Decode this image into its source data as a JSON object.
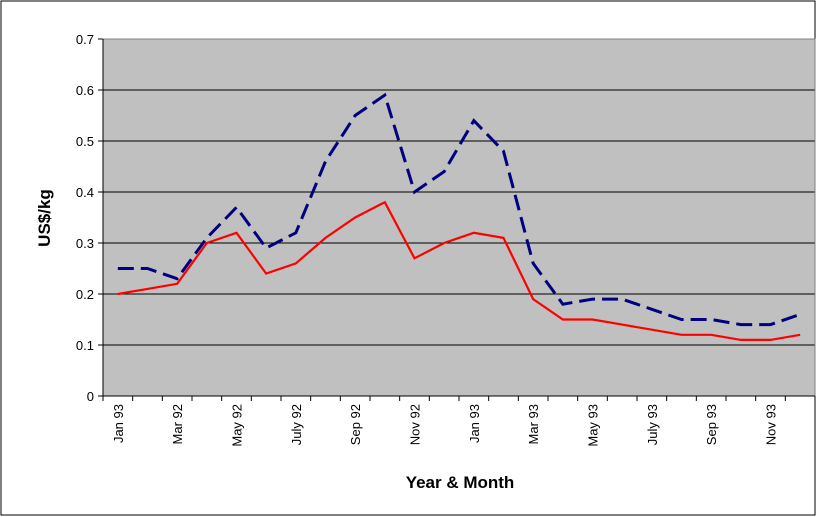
{
  "chart_data": {
    "type": "line",
    "x_label": "Year & Month",
    "y_label": "US$/kg",
    "categories": [
      "Jan 93",
      null,
      "Mar 92",
      null,
      "May 92",
      null,
      "July 92",
      null,
      "Sep 92",
      null,
      "Nov 92",
      null,
      "Jan 93",
      null,
      "Mar 93",
      null,
      "May 93",
      null,
      "July 93",
      null,
      "Sep 93",
      null,
      "Nov 93",
      null
    ],
    "series": [
      {
        "color": "#000080",
        "dashed": true,
        "values": [
          0.25,
          0.25,
          0.23,
          0.31,
          0.37,
          0.29,
          0.32,
          0.46,
          0.55,
          0.59,
          0.4,
          0.44,
          0.54,
          0.48,
          0.26,
          0.18,
          0.19,
          0.19,
          0.17,
          0.15,
          0.15,
          0.14,
          0.14,
          0.16
        ]
      },
      {
        "color": "#ff0000",
        "dashed": false,
        "values": [
          0.2,
          0.21,
          0.22,
          0.3,
          0.32,
          0.24,
          0.26,
          0.31,
          0.35,
          0.38,
          0.27,
          0.3,
          0.32,
          0.31,
          0.19,
          0.15,
          0.15,
          0.14,
          0.13,
          0.12,
          0.12,
          0.11,
          0.11,
          0.12
        ]
      }
    ],
    "ylim": [
      0,
      0.7
    ],
    "yticks": [
      0,
      0.1,
      0.2,
      0.3,
      0.4,
      0.5,
      0.6,
      0.7
    ],
    "grid": true,
    "plot_background": "#c0c0c0"
  }
}
